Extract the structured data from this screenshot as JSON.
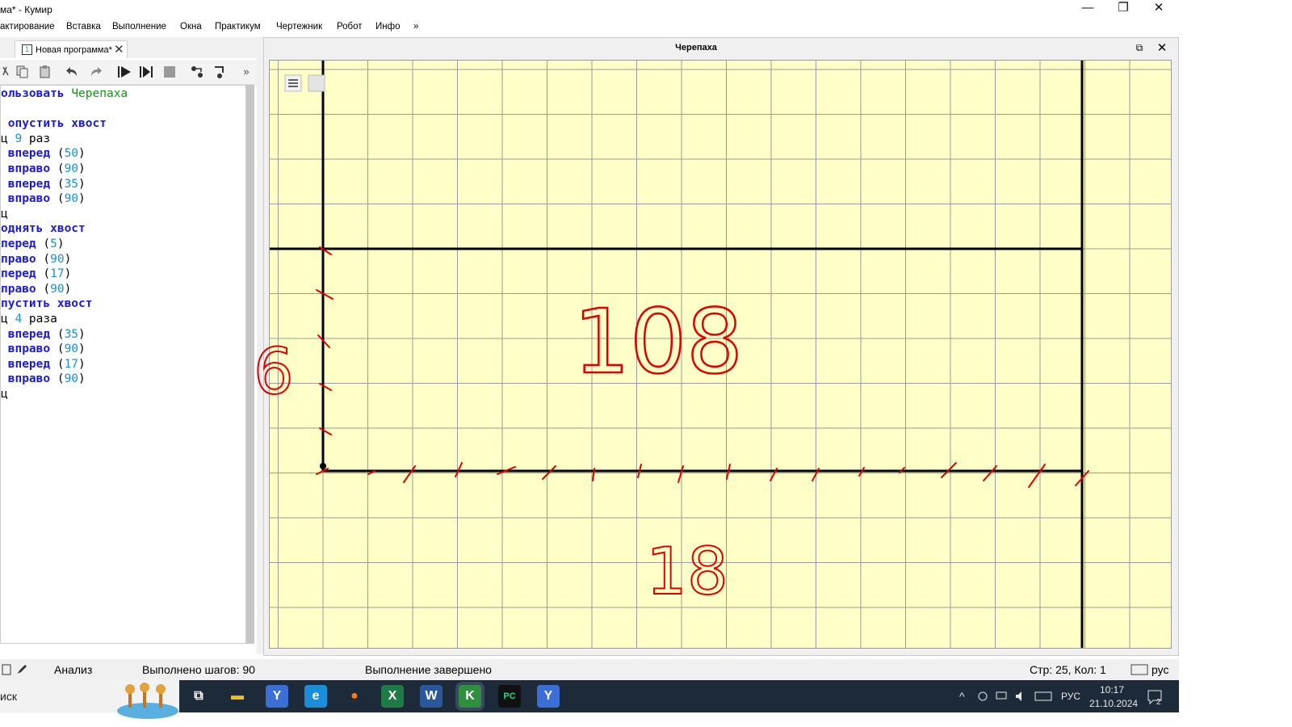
{
  "window": {
    "title": "ма* - Кумир",
    "controls": {
      "minimize": "—",
      "restore": "❐",
      "close": "✕"
    }
  },
  "menu": {
    "items": [
      "актирование",
      "Вставка",
      "Выполнение",
      "Окна",
      "Практикум",
      "Чертежник",
      "Робот",
      "Инфо",
      "»"
    ]
  },
  "editor": {
    "tab_number": "1",
    "tab_label": "Новая программа*",
    "tab_close": "✕",
    "toolbar_more": "»"
  },
  "code_lines": [
    [
      [
        "ользовать ",
        "kw"
      ],
      [
        "Черепаха",
        "grn"
      ]
    ],
    [],
    [
      [
        " опустить хвост",
        "kw"
      ]
    ],
    [
      [
        "ц ",
        "plain"
      ],
      [
        "9",
        "num"
      ],
      [
        " раз",
        "plain"
      ]
    ],
    [
      [
        " вперед ",
        "kw"
      ],
      [
        "(",
        "plain"
      ],
      [
        "50",
        "num"
      ],
      [
        ")",
        "plain"
      ]
    ],
    [
      [
        " вправо ",
        "kw"
      ],
      [
        "(",
        "plain"
      ],
      [
        "90",
        "num"
      ],
      [
        ")",
        "plain"
      ]
    ],
    [
      [
        " вперед ",
        "kw"
      ],
      [
        "(",
        "plain"
      ],
      [
        "35",
        "num"
      ],
      [
        ")",
        "plain"
      ]
    ],
    [
      [
        " вправо ",
        "kw"
      ],
      [
        "(",
        "plain"
      ],
      [
        "90",
        "num"
      ],
      [
        ")",
        "plain"
      ]
    ],
    [
      [
        "ц",
        "plain"
      ]
    ],
    [
      [
        "однять хвост",
        "kw"
      ]
    ],
    [
      [
        "перед ",
        "kw"
      ],
      [
        "(",
        "plain"
      ],
      [
        "5",
        "num"
      ],
      [
        ")",
        "plain"
      ]
    ],
    [
      [
        "право ",
        "kw"
      ],
      [
        "(",
        "plain"
      ],
      [
        "90",
        "num"
      ],
      [
        ")",
        "plain"
      ]
    ],
    [
      [
        "перед ",
        "kw"
      ],
      [
        "(",
        "plain"
      ],
      [
        "17",
        "num"
      ],
      [
        ")",
        "plain"
      ]
    ],
    [
      [
        "право ",
        "kw"
      ],
      [
        "(",
        "plain"
      ],
      [
        "90",
        "num"
      ],
      [
        ")",
        "plain"
      ]
    ],
    [
      [
        "пустить хвост",
        "kw"
      ]
    ],
    [
      [
        "ц ",
        "plain"
      ],
      [
        "4",
        "num"
      ],
      [
        " раза",
        "plain"
      ]
    ],
    [
      [
        " вперед ",
        "kw"
      ],
      [
        "(",
        "plain"
      ],
      [
        "35",
        "num"
      ],
      [
        ")",
        "plain"
      ]
    ],
    [
      [
        " вправо ",
        "kw"
      ],
      [
        "(",
        "plain"
      ],
      [
        "90",
        "num"
      ],
      [
        ")",
        "plain"
      ]
    ],
    [
      [
        " вперед ",
        "kw"
      ],
      [
        "(",
        "plain"
      ],
      [
        "17",
        "num"
      ],
      [
        ")",
        "plain"
      ]
    ],
    [
      [
        " вправо ",
        "kw"
      ],
      [
        "(",
        "plain"
      ],
      [
        "90",
        "num"
      ],
      [
        ")",
        "plain"
      ]
    ],
    [
      [
        "ц",
        "plain"
      ]
    ]
  ],
  "turtle": {
    "title": "Черепаха",
    "restore": "⧉",
    "close": "✕",
    "background": "#ffffc8",
    "grid_color": "#9a9a9a",
    "annotations": [
      "6",
      "108",
      "18"
    ],
    "annotation_color": "#e00000"
  },
  "status": {
    "mode": "Анализ",
    "steps": "Выполнено шагов: 90",
    "state": "Выполнение завершено",
    "position": "Стр: 25, Кол: 1",
    "lang": "рус"
  },
  "taskbar": {
    "search_text": "иск",
    "tray_lang": "РУС",
    "time": "10:17",
    "date": "21.10.2024",
    "notifications": "2",
    "apps": [
      {
        "name": "task-view-icon",
        "glyph": "⧉",
        "bg": "#1d2a3a",
        "fg": "#ffffff"
      },
      {
        "name": "file-explorer-icon",
        "glyph": "▬",
        "bg": "#1d2a3a",
        "fg": "#f0c020"
      },
      {
        "name": "yandex-browser-icon",
        "glyph": "Y",
        "bg": "#3c6fd6",
        "fg": "#ffffff"
      },
      {
        "name": "edge-icon",
        "glyph": "e",
        "bg": "#1a8ed8",
        "fg": "#ffffff"
      },
      {
        "name": "firefox-icon",
        "glyph": "●",
        "bg": "#1d2a3a",
        "fg": "#ff7b16"
      },
      {
        "name": "excel-icon",
        "glyph": "X",
        "bg": "#1f7a45",
        "fg": "#ffffff"
      },
      {
        "name": "word-icon",
        "glyph": "W",
        "bg": "#2b579a",
        "fg": "#ffffff"
      },
      {
        "name": "kumir-icon",
        "glyph": "K",
        "bg": "#2f8f3f",
        "fg": "#ffffff"
      },
      {
        "name": "pycharm-icon",
        "glyph": "PC",
        "bg": "#111111",
        "fg": "#21d789"
      },
      {
        "name": "yandex-icon",
        "glyph": "Y",
        "bg": "#3c6fd6",
        "fg": "#ffffff"
      }
    ]
  }
}
